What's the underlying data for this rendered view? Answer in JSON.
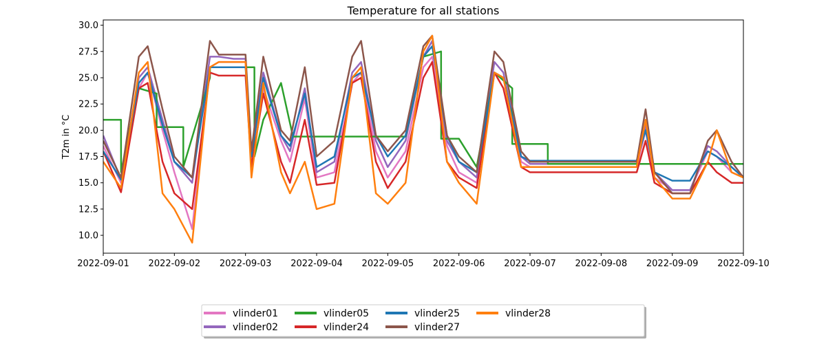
{
  "chart_data": {
    "type": "line",
    "title": "Temperature for all stations",
    "xlabel": "",
    "ylabel": "T2m in °C",
    "xlim": [
      "2022-09-01",
      "2022-09-10"
    ],
    "ylim": [
      8.3,
      30.5
    ],
    "x_ticks": [
      "2022-09-01",
      "2022-09-02",
      "2022-09-03",
      "2022-09-04",
      "2022-09-05",
      "2022-09-06",
      "2022-09-07",
      "2022-09-08",
      "2022-09-09",
      "2022-09-10"
    ],
    "y_ticks": [
      10.0,
      12.5,
      15.0,
      17.5,
      20.0,
      22.5,
      25.0,
      27.5,
      30.0
    ],
    "grid": false,
    "legend_position": "bottom-center",
    "series": [
      {
        "name": "vlinder01",
        "color": "#e377c2",
        "x": [
          "2022-09-01T00:00",
          "2022-09-01T06:00",
          "2022-09-01T12:00",
          "2022-09-01T15:00",
          "2022-09-01T20:00",
          "2022-09-02T00:00",
          "2022-09-02T06:00",
          "2022-09-02T12:00",
          "2022-09-02T15:00",
          "2022-09-02T20:00",
          "2022-09-03T00:00",
          "2022-09-03T02:00",
          "2022-09-03T06:00",
          "2022-09-03T12:00",
          "2022-09-03T15:00",
          "2022-09-03T20:00",
          "2022-09-04T00:00",
          "2022-09-04T06:00",
          "2022-09-04T12:00",
          "2022-09-04T15:00",
          "2022-09-04T20:00",
          "2022-09-05T00:00",
          "2022-09-05T06:00",
          "2022-09-05T12:00",
          "2022-09-05T15:00",
          "2022-09-05T20:00",
          "2022-09-06T00:00",
          "2022-09-06T06:00",
          "2022-09-06T12:00",
          "2022-09-06T15:00",
          "2022-09-06T21:00",
          "2022-09-07T00:00",
          "2022-09-07T12:00",
          "2022-09-08T00:00",
          "2022-09-08T12:00",
          "2022-09-08T15:00",
          "2022-09-08T18:00",
          "2022-09-09T00:00",
          "2022-09-09T06:00",
          "2022-09-09T12:00",
          "2022-09-09T15:00",
          "2022-09-09T20:00",
          "2022-09-10T00:00"
        ],
        "y": [
          18.5,
          15.0,
          24.0,
          25.5,
          20.0,
          16.0,
          10.6,
          26.0,
          26.5,
          26.5,
          26.5,
          17.0,
          24.0,
          19.0,
          17.0,
          23.0,
          15.5,
          16.0,
          24.5,
          25.5,
          18.0,
          15.5,
          18.0,
          26.0,
          27.0,
          18.5,
          16.0,
          15.0,
          25.5,
          25.0,
          17.0,
          16.5,
          16.5,
          16.5,
          16.5,
          20.0,
          15.5,
          14.3,
          14.3,
          18.0,
          17.5,
          16.0,
          15.5
        ]
      },
      {
        "name": "vlinder02",
        "color": "#9467bd",
        "x": [
          "2022-09-01T00:00",
          "2022-09-01T06:00",
          "2022-09-01T12:00",
          "2022-09-01T15:00",
          "2022-09-01T20:00",
          "2022-09-02T00:00",
          "2022-09-02T06:00",
          "2022-09-02T12:00",
          "2022-09-02T15:00",
          "2022-09-02T20:00",
          "2022-09-03T00:00",
          "2022-09-03T02:00",
          "2022-09-03T06:00",
          "2022-09-03T12:00",
          "2022-09-03T15:00",
          "2022-09-03T20:00",
          "2022-09-04T00:00",
          "2022-09-04T06:00",
          "2022-09-04T12:00",
          "2022-09-04T15:00",
          "2022-09-04T20:00",
          "2022-09-05T00:00",
          "2022-09-05T06:00",
          "2022-09-05T12:00",
          "2022-09-05T15:00",
          "2022-09-05T20:00",
          "2022-09-06T00:00",
          "2022-09-06T06:00",
          "2022-09-06T12:00",
          "2022-09-06T15:00",
          "2022-09-06T21:00",
          "2022-09-07T00:00",
          "2022-09-07T12:00",
          "2022-09-08T00:00",
          "2022-09-08T12:00",
          "2022-09-08T15:00",
          "2022-09-08T18:00",
          "2022-09-09T00:00",
          "2022-09-09T06:00",
          "2022-09-09T12:00",
          "2022-09-09T15:00",
          "2022-09-09T20:00",
          "2022-09-10T00:00"
        ],
        "y": [
          19.5,
          15.3,
          25.0,
          26.0,
          21.0,
          17.0,
          15.0,
          27.0,
          27.0,
          26.8,
          26.8,
          17.5,
          25.5,
          19.5,
          18.0,
          24.0,
          16.0,
          17.0,
          25.5,
          26.5,
          19.0,
          16.5,
          19.0,
          27.0,
          28.5,
          19.0,
          17.0,
          15.5,
          26.5,
          25.5,
          17.5,
          16.8,
          16.8,
          16.8,
          16.8,
          20.5,
          16.0,
          14.3,
          14.3,
          18.5,
          18.0,
          16.5,
          15.5
        ]
      },
      {
        "name": "vlinder05",
        "color": "#2ca02c",
        "x": [
          "2022-09-01T00:00",
          "2022-09-01T06:00",
          "2022-09-01T06:01",
          "2022-09-01T09:00",
          "2022-09-01T12:00",
          "2022-09-01T18:00",
          "2022-09-01T18:01",
          "2022-09-02T00:00",
          "2022-09-02T03:00",
          "2022-09-02T03:01",
          "2022-09-02T12:00",
          "2022-09-02T12:01",
          "2022-09-03T00:00",
          "2022-09-03T03:00",
          "2022-09-03T03:01",
          "2022-09-03T06:00",
          "2022-09-03T12:00",
          "2022-09-03T16:00",
          "2022-09-03T16:01",
          "2022-09-04T00:00",
          "2022-09-04T12:00",
          "2022-09-05T00:00",
          "2022-09-05T06:00",
          "2022-09-05T12:00",
          "2022-09-05T18:00",
          "2022-09-05T18:01",
          "2022-09-06T00:00",
          "2022-09-06T06:00",
          "2022-09-06T12:00",
          "2022-09-06T18:00",
          "2022-09-06T18:01",
          "2022-09-07T00:00",
          "2022-09-07T06:00",
          "2022-09-07T06:01",
          "2022-09-08T00:00",
          "2022-09-08T12:00",
          "2022-09-09T00:00",
          "2022-09-09T12:00",
          "2022-09-10T00:00"
        ],
        "y": [
          21.0,
          21.0,
          16.0,
          20.2,
          24.0,
          23.5,
          20.3,
          20.3,
          20.3,
          16.5,
          25.0,
          26.0,
          26.0,
          26.0,
          17.5,
          21.0,
          24.5,
          19.4,
          19.4,
          19.4,
          19.4,
          19.4,
          19.4,
          27.0,
          27.5,
          19.2,
          19.2,
          16.5,
          25.5,
          24.0,
          18.7,
          18.7,
          18.7,
          16.8,
          16.8,
          16.8,
          16.8,
          16.8,
          16.8
        ]
      },
      {
        "name": "vlinder24",
        "color": "#d62728",
        "x": [
          "2022-09-01T00:00",
          "2022-09-01T06:00",
          "2022-09-01T12:00",
          "2022-09-01T15:00",
          "2022-09-01T20:00",
          "2022-09-02T00:00",
          "2022-09-02T06:00",
          "2022-09-02T12:00",
          "2022-09-02T15:00",
          "2022-09-02T20:00",
          "2022-09-03T00:00",
          "2022-09-03T02:00",
          "2022-09-03T06:00",
          "2022-09-03T12:00",
          "2022-09-03T15:00",
          "2022-09-03T20:00",
          "2022-09-04T00:00",
          "2022-09-04T06:00",
          "2022-09-04T12:00",
          "2022-09-04T15:00",
          "2022-09-04T20:00",
          "2022-09-05T00:00",
          "2022-09-05T06:00",
          "2022-09-05T12:00",
          "2022-09-05T15:00",
          "2022-09-05T20:00",
          "2022-09-06T00:00",
          "2022-09-06T06:00",
          "2022-09-06T12:00",
          "2022-09-06T15:00",
          "2022-09-06T21:00",
          "2022-09-07T00:00",
          "2022-09-07T12:00",
          "2022-09-08T00:00",
          "2022-09-08T12:00",
          "2022-09-08T15:00",
          "2022-09-08T18:00",
          "2022-09-09T00:00",
          "2022-09-09T06:00",
          "2022-09-09T12:00",
          "2022-09-09T15:00",
          "2022-09-09T20:00",
          "2022-09-10T00:00"
        ],
        "y": [
          18.0,
          14.1,
          24.0,
          24.5,
          17.0,
          14.0,
          12.5,
          25.5,
          25.2,
          25.2,
          25.2,
          16.5,
          23.5,
          17.0,
          15.0,
          21.0,
          14.8,
          15.0,
          24.5,
          25.0,
          17.0,
          14.5,
          17.0,
          25.0,
          26.5,
          17.0,
          15.5,
          14.5,
          25.5,
          24.0,
          16.5,
          16.0,
          16.0,
          16.0,
          16.0,
          19.0,
          15.0,
          14.0,
          14.0,
          17.0,
          16.0,
          15.0,
          15.0
        ]
      },
      {
        "name": "vlinder25",
        "color": "#1f77b4",
        "x": [
          "2022-09-01T00:00",
          "2022-09-01T06:00",
          "2022-09-01T12:00",
          "2022-09-01T15:00",
          "2022-09-01T20:00",
          "2022-09-02T00:00",
          "2022-09-02T06:00",
          "2022-09-02T12:00",
          "2022-09-02T15:00",
          "2022-09-02T20:00",
          "2022-09-03T00:00",
          "2022-09-03T02:00",
          "2022-09-03T06:00",
          "2022-09-03T12:00",
          "2022-09-03T15:00",
          "2022-09-03T20:00",
          "2022-09-04T00:00",
          "2022-09-04T06:00",
          "2022-09-04T12:00",
          "2022-09-04T15:00",
          "2022-09-04T20:00",
          "2022-09-05T00:00",
          "2022-09-05T06:00",
          "2022-09-05T12:00",
          "2022-09-05T15:00",
          "2022-09-05T20:00",
          "2022-09-06T00:00",
          "2022-09-06T06:00",
          "2022-09-06T12:00",
          "2022-09-06T15:00",
          "2022-09-06T21:00",
          "2022-09-07T00:00",
          "2022-09-07T12:00",
          "2022-09-08T00:00",
          "2022-09-08T12:00",
          "2022-09-08T15:00",
          "2022-09-08T18:00",
          "2022-09-09T00:00",
          "2022-09-09T06:00",
          "2022-09-09T12:00",
          "2022-09-09T15:00",
          "2022-09-09T20:00",
          "2022-09-10T00:00"
        ],
        "y": [
          18.0,
          15.3,
          24.5,
          25.5,
          20.5,
          17.0,
          15.5,
          26.0,
          26.0,
          26.0,
          26.0,
          17.5,
          25.0,
          19.5,
          18.5,
          23.5,
          16.5,
          17.5,
          25.0,
          25.5,
          19.5,
          17.5,
          19.5,
          27.0,
          28.0,
          19.5,
          17.0,
          16.0,
          25.5,
          25.0,
          17.5,
          17.1,
          17.1,
          17.1,
          17.1,
          20.0,
          16.0,
          15.2,
          15.2,
          18.0,
          17.5,
          16.5,
          15.5
        ]
      },
      {
        "name": "vlinder27",
        "color": "#8c564b",
        "x": [
          "2022-09-01T00:00",
          "2022-09-01T06:00",
          "2022-09-01T12:00",
          "2022-09-01T15:00",
          "2022-09-01T20:00",
          "2022-09-02T00:00",
          "2022-09-02T06:00",
          "2022-09-02T12:00",
          "2022-09-02T15:00",
          "2022-09-02T20:00",
          "2022-09-03T00:00",
          "2022-09-03T02:00",
          "2022-09-03T06:00",
          "2022-09-03T12:00",
          "2022-09-03T15:00",
          "2022-09-03T20:00",
          "2022-09-04T00:00",
          "2022-09-04T06:00",
          "2022-09-04T12:00",
          "2022-09-04T15:00",
          "2022-09-04T20:00",
          "2022-09-05T00:00",
          "2022-09-05T06:00",
          "2022-09-05T12:00",
          "2022-09-05T15:00",
          "2022-09-05T20:00",
          "2022-09-06T00:00",
          "2022-09-06T06:00",
          "2022-09-06T12:00",
          "2022-09-06T15:00",
          "2022-09-06T21:00",
          "2022-09-07T00:00",
          "2022-09-07T12:00",
          "2022-09-08T00:00",
          "2022-09-08T12:00",
          "2022-09-08T15:00",
          "2022-09-08T18:00",
          "2022-09-09T00:00",
          "2022-09-09T06:00",
          "2022-09-09T12:00",
          "2022-09-09T15:00",
          "2022-09-09T20:00",
          "2022-09-10T00:00"
        ],
        "y": [
          19.0,
          15.5,
          27.0,
          28.0,
          22.0,
          17.5,
          15.5,
          28.5,
          27.2,
          27.2,
          27.2,
          18.0,
          27.0,
          20.0,
          19.0,
          26.0,
          17.5,
          19.0,
          27.0,
          28.5,
          19.5,
          18.0,
          20.0,
          28.0,
          29.0,
          19.5,
          17.5,
          16.0,
          27.5,
          26.5,
          18.0,
          17.0,
          17.0,
          17.0,
          17.0,
          22.0,
          16.0,
          14.0,
          14.0,
          19.0,
          20.0,
          17.0,
          15.5
        ]
      },
      {
        "name": "vlinder28",
        "color": "#ff7f0e",
        "x": [
          "2022-09-01T00:00",
          "2022-09-01T06:00",
          "2022-09-01T12:00",
          "2022-09-01T15:00",
          "2022-09-01T20:00",
          "2022-09-02T00:00",
          "2022-09-02T06:00",
          "2022-09-02T12:00",
          "2022-09-02T15:00",
          "2022-09-02T20:00",
          "2022-09-03T00:00",
          "2022-09-03T02:00",
          "2022-09-03T06:00",
          "2022-09-03T12:00",
          "2022-09-03T15:00",
          "2022-09-03T20:00",
          "2022-09-04T00:00",
          "2022-09-04T06:00",
          "2022-09-04T12:00",
          "2022-09-04T15:00",
          "2022-09-04T20:00",
          "2022-09-05T00:00",
          "2022-09-05T06:00",
          "2022-09-05T12:00",
          "2022-09-05T15:00",
          "2022-09-05T20:00",
          "2022-09-06T00:00",
          "2022-09-06T06:00",
          "2022-09-06T12:00",
          "2022-09-06T15:00",
          "2022-09-06T21:00",
          "2022-09-07T00:00",
          "2022-09-07T12:00",
          "2022-09-08T00:00",
          "2022-09-08T12:00",
          "2022-09-08T15:00",
          "2022-09-08T18:00",
          "2022-09-09T00:00",
          "2022-09-09T06:00",
          "2022-09-09T12:00",
          "2022-09-09T15:00",
          "2022-09-09T20:00",
          "2022-09-10T00:00"
        ],
        "y": [
          17.0,
          14.5,
          25.5,
          26.5,
          14.0,
          12.5,
          9.3,
          26.0,
          26.5,
          26.5,
          26.5,
          15.5,
          24.5,
          16.0,
          14.0,
          17.0,
          12.5,
          13.0,
          25.0,
          26.0,
          14.0,
          13.0,
          15.0,
          27.5,
          29.0,
          17.0,
          15.0,
          13.0,
          25.5,
          25.0,
          16.5,
          16.5,
          16.5,
          16.5,
          16.5,
          21.0,
          15.5,
          13.5,
          13.5,
          17.0,
          20.0,
          16.0,
          15.5
        ]
      }
    ]
  }
}
